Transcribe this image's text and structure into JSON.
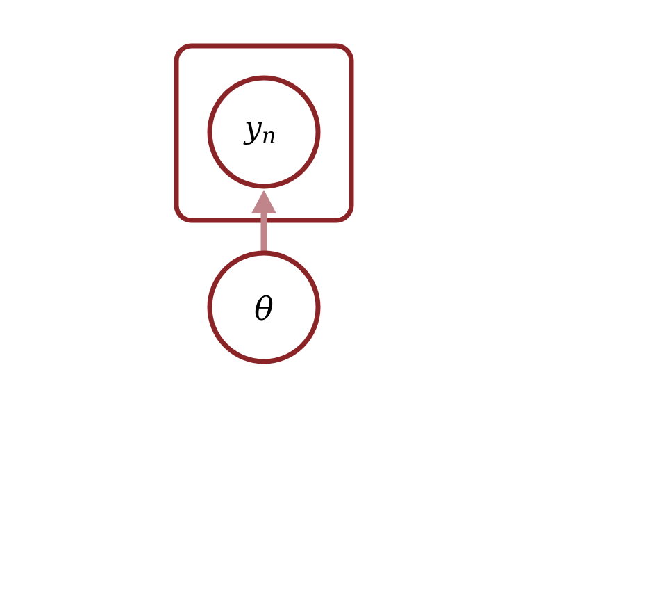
{
  "colors": {
    "node_stroke": "#8B2427",
    "plate_stroke": "#8B2427",
    "edge": "#C0858A",
    "node_fill": "#FFFFFF",
    "background": "#FFFFFF"
  },
  "nodes": {
    "observed": {
      "label_base": "y",
      "label_sub": "n"
    },
    "parameter": {
      "label": "θ"
    }
  }
}
